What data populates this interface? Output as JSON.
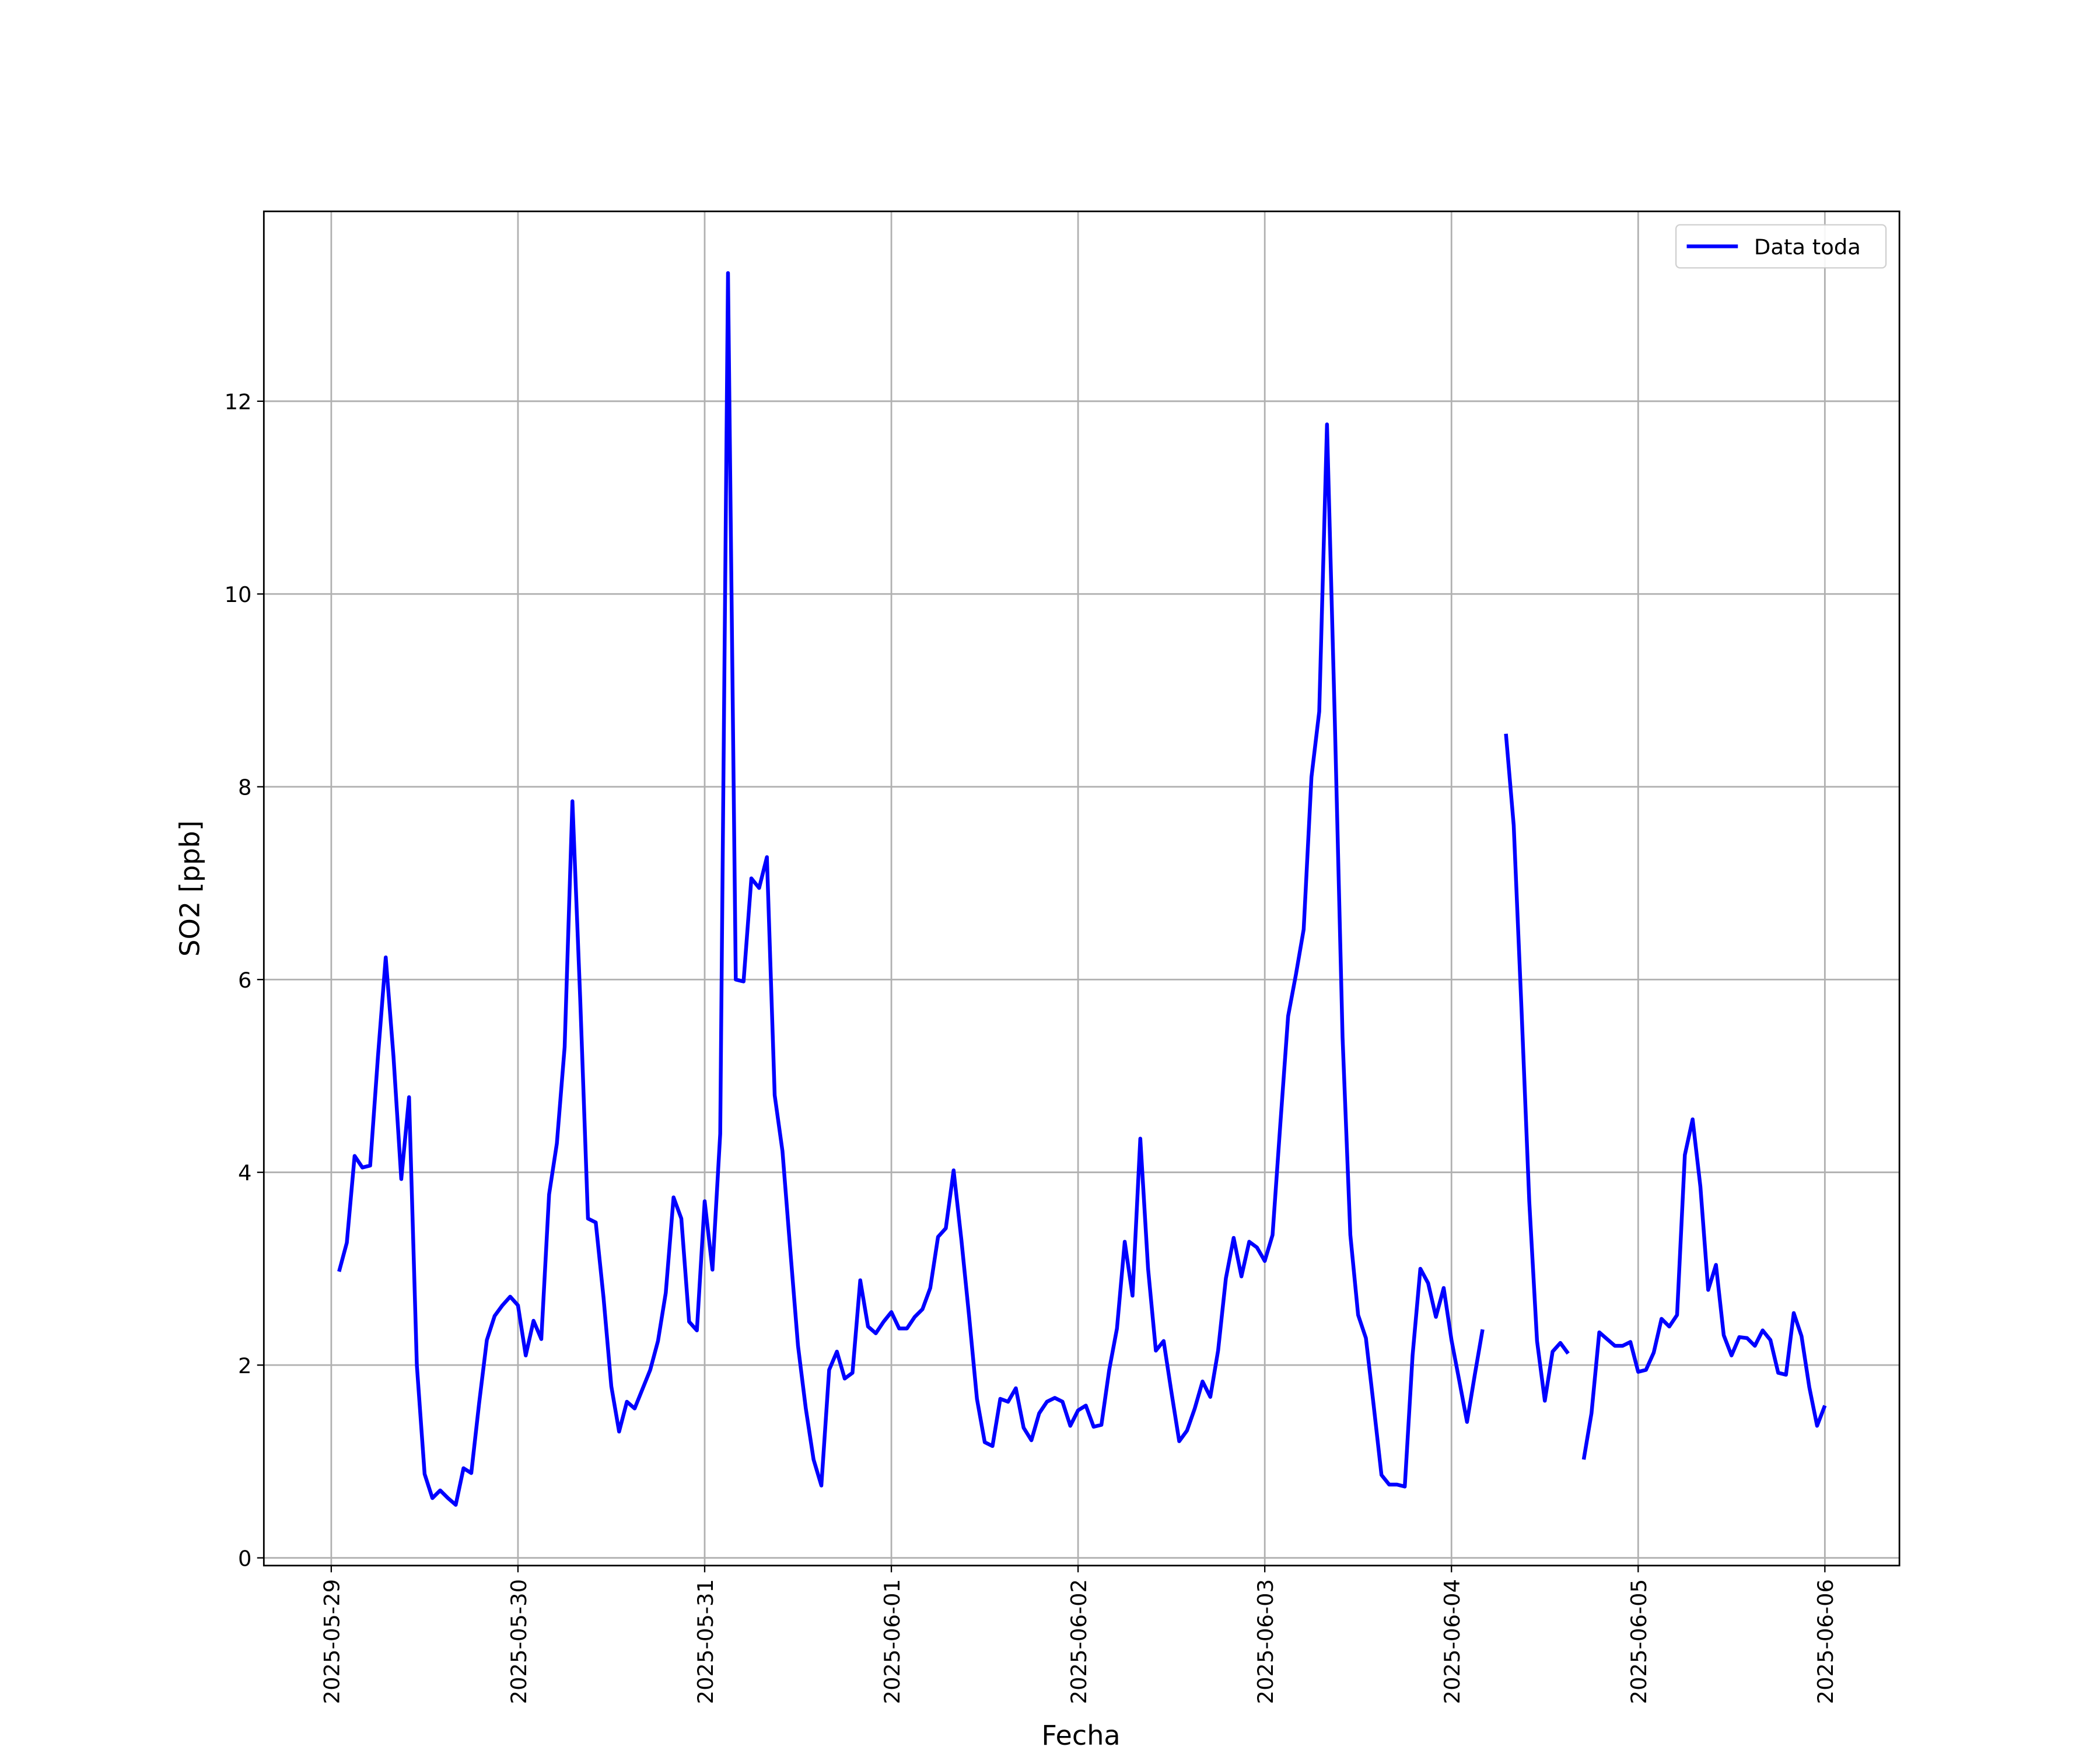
{
  "chart_data": {
    "type": "line",
    "xlabel": "Fecha",
    "ylabel": "SO2 [ppb]",
    "x": [
      "2025-05-29T01:00",
      "2025-05-29T02:00",
      "2025-05-29T03:00",
      "2025-05-29T04:00",
      "2025-05-29T05:00",
      "2025-05-29T06:00",
      "2025-05-29T07:00",
      "2025-05-29T08:00",
      "2025-05-29T09:00",
      "2025-05-29T10:00",
      "2025-05-29T11:00",
      "2025-05-29T12:00",
      "2025-05-29T13:00",
      "2025-05-29T14:00",
      "2025-05-29T15:00",
      "2025-05-29T16:00",
      "2025-05-29T17:00",
      "2025-05-29T18:00",
      "2025-05-29T19:00",
      "2025-05-29T20:00",
      "2025-05-29T21:00",
      "2025-05-29T22:00",
      "2025-05-29T23:00",
      "2025-05-30T00:00",
      "2025-05-30T01:00",
      "2025-05-30T02:00",
      "2025-05-30T03:00",
      "2025-05-30T04:00",
      "2025-05-30T05:00",
      "2025-05-30T06:00",
      "2025-05-30T07:00",
      "2025-05-30T08:00",
      "2025-05-30T09:00",
      "2025-05-30T10:00",
      "2025-05-30T11:00",
      "2025-05-30T12:00",
      "2025-05-30T13:00",
      "2025-05-30T14:00",
      "2025-05-30T15:00",
      "2025-05-30T16:00",
      "2025-05-30T17:00",
      "2025-05-30T18:00",
      "2025-05-30T19:00",
      "2025-05-30T20:00",
      "2025-05-30T21:00",
      "2025-05-30T22:00",
      "2025-05-30T23:00",
      "2025-05-31T00:00",
      "2025-05-31T01:00",
      "2025-05-31T02:00",
      "2025-05-31T03:00",
      "2025-05-31T04:00",
      "2025-05-31T05:00",
      "2025-05-31T06:00",
      "2025-05-31T07:00",
      "2025-05-31T08:00",
      "2025-05-31T09:00",
      "2025-05-31T10:00",
      "2025-05-31T11:00",
      "2025-05-31T12:00",
      "2025-05-31T13:00",
      "2025-05-31T14:00",
      "2025-05-31T15:00",
      "2025-05-31T16:00",
      "2025-05-31T17:00",
      "2025-05-31T18:00",
      "2025-05-31T19:00",
      "2025-05-31T20:00",
      "2025-05-31T21:00",
      "2025-05-31T22:00",
      "2025-05-31T23:00",
      "2025-06-01T00:00",
      "2025-06-01T01:00",
      "2025-06-01T02:00",
      "2025-06-01T03:00",
      "2025-06-01T04:00",
      "2025-06-01T05:00",
      "2025-06-01T06:00",
      "2025-06-01T07:00",
      "2025-06-01T08:00",
      "2025-06-01T09:00",
      "2025-06-01T10:00",
      "2025-06-01T11:00",
      "2025-06-01T12:00",
      "2025-06-01T13:00",
      "2025-06-01T14:00",
      "2025-06-01T15:00",
      "2025-06-01T16:00",
      "2025-06-01T17:00",
      "2025-06-01T18:00",
      "2025-06-01T19:00",
      "2025-06-01T20:00",
      "2025-06-01T21:00",
      "2025-06-01T22:00",
      "2025-06-01T23:00",
      "2025-06-02T00:00",
      "2025-06-02T01:00",
      "2025-06-02T02:00",
      "2025-06-02T03:00",
      "2025-06-02T04:00",
      "2025-06-02T05:00",
      "2025-06-02T06:00",
      "2025-06-02T07:00",
      "2025-06-02T08:00",
      "2025-06-02T09:00",
      "2025-06-02T10:00",
      "2025-06-02T11:00",
      "2025-06-02T12:00",
      "2025-06-02T13:00",
      "2025-06-02T14:00",
      "2025-06-02T15:00",
      "2025-06-02T16:00",
      "2025-06-02T17:00",
      "2025-06-02T18:00",
      "2025-06-02T19:00",
      "2025-06-02T20:00",
      "2025-06-02T21:00",
      "2025-06-02T22:00",
      "2025-06-02T23:00",
      "2025-06-03T00:00",
      "2025-06-03T01:00",
      "2025-06-03T02:00",
      "2025-06-03T03:00",
      "2025-06-03T04:00",
      "2025-06-03T05:00",
      "2025-06-03T06:00",
      "2025-06-03T07:00",
      "2025-06-03T08:00",
      "2025-06-03T09:00",
      "2025-06-03T10:00",
      "2025-06-03T11:00",
      "2025-06-03T12:00",
      "2025-06-03T13:00",
      "2025-06-03T14:00",
      "2025-06-03T15:00",
      "2025-06-03T16:00",
      "2025-06-03T17:00",
      "2025-06-03T18:00",
      "2025-06-03T19:00",
      "2025-06-03T20:00",
      "2025-06-03T21:00",
      "2025-06-03T22:00",
      "2025-06-03T23:00",
      "2025-06-04T00:00",
      "2025-06-04T01:00",
      "2025-06-04T02:00",
      "2025-06-04T03:00",
      "2025-06-04T04:00",
      "2025-06-04T05:00",
      "2025-06-04T06:00",
      "2025-06-04T07:00",
      "2025-06-04T08:00",
      "2025-06-04T09:00",
      "2025-06-04T10:00",
      "2025-06-04T11:00",
      "2025-06-04T12:00",
      "2025-06-04T13:00",
      "2025-06-04T14:00",
      "2025-06-04T15:00",
      "2025-06-04T16:00",
      "2025-06-04T17:00",
      "2025-06-04T18:00",
      "2025-06-04T19:00",
      "2025-06-04T20:00",
      "2025-06-04T21:00",
      "2025-06-04T22:00",
      "2025-06-04T23:00",
      "2025-06-05T00:00",
      "2025-06-05T01:00",
      "2025-06-05T02:00",
      "2025-06-05T03:00",
      "2025-06-05T04:00",
      "2025-06-05T05:00",
      "2025-06-05T06:00",
      "2025-06-05T07:00",
      "2025-06-05T08:00",
      "2025-06-05T09:00",
      "2025-06-05T10:00",
      "2025-06-05T11:00",
      "2025-06-05T12:00",
      "2025-06-05T13:00",
      "2025-06-05T14:00",
      "2025-06-05T15:00",
      "2025-06-05T16:00",
      "2025-06-05T17:00",
      "2025-06-05T18:00",
      "2025-06-05T19:00",
      "2025-06-05T20:00",
      "2025-06-05T21:00",
      "2025-06-05T22:00",
      "2025-06-05T23:00",
      "2025-06-06T00:00"
    ],
    "series": [
      {
        "name": "Data toda",
        "color": "#0000ff",
        "values": [
          2.97,
          3.27,
          4.17,
          4.05,
          4.07,
          5.2,
          6.23,
          5.2,
          3.93,
          4.78,
          2.0,
          0.87,
          0.62,
          0.7,
          0.62,
          0.55,
          0.93,
          0.88,
          1.6,
          2.26,
          2.51,
          2.62,
          2.71,
          2.62,
          2.1,
          2.46,
          2.27,
          3.77,
          4.3,
          5.3,
          7.85,
          5.8,
          3.52,
          3.48,
          2.7,
          1.78,
          1.31,
          1.62,
          1.55,
          1.75,
          1.95,
          2.25,
          2.75,
          3.74,
          3.52,
          2.45,
          2.36,
          3.7,
          2.99,
          4.4,
          13.33,
          6.0,
          5.98,
          7.05,
          6.95,
          7.27,
          4.8,
          4.22,
          3.2,
          2.2,
          1.55,
          1.02,
          0.75,
          1.95,
          2.14,
          1.86,
          1.92,
          2.88,
          2.4,
          2.33,
          2.45,
          2.55,
          2.38,
          2.38,
          2.5,
          2.58,
          2.8,
          3.33,
          3.42,
          4.02,
          3.3,
          2.5,
          1.65,
          1.2,
          1.16,
          1.65,
          1.62,
          1.76,
          1.35,
          1.22,
          1.5,
          1.62,
          1.66,
          1.62,
          1.37,
          1.53,
          1.58,
          1.36,
          1.38,
          1.95,
          2.38,
          3.28,
          2.72,
          4.35,
          3.0,
          2.15,
          2.25,
          1.72,
          1.21,
          1.32,
          1.55,
          1.83,
          1.67,
          2.15,
          2.9,
          3.32,
          2.92,
          3.28,
          3.22,
          3.08,
          3.35,
          4.5,
          5.62,
          6.05,
          6.52,
          8.1,
          8.78,
          11.76,
          8.7,
          5.4,
          3.35,
          2.52,
          2.28,
          1.58,
          0.86,
          0.76,
          0.76,
          0.74,
          2.1,
          3.0,
          2.85,
          2.5,
          2.8,
          2.26,
          1.84,
          1.41,
          1.9,
          2.37,
          null,
          null,
          8.55,
          7.6,
          5.7,
          3.7,
          2.25,
          1.63,
          2.14,
          2.23,
          2.12,
          null,
          1.02,
          1.5,
          2.34,
          2.27,
          2.2,
          2.2,
          2.24,
          1.93,
          1.95,
          2.13,
          2.48,
          2.4,
          2.52,
          4.18,
          4.55,
          3.85,
          2.78,
          3.04,
          2.31,
          2.1,
          2.29,
          2.28,
          2.2,
          2.36,
          2.26,
          1.92,
          1.9,
          2.54,
          2.3,
          1.77,
          1.37,
          1.58
        ]
      }
    ],
    "xlim": [
      "2025-05-28T15:20",
      "2025-06-06T09:35"
    ],
    "xticks": [
      "2025-05-29",
      "2025-05-30",
      "2025-05-31",
      "2025-06-01",
      "2025-06-02",
      "2025-06-03",
      "2025-06-04",
      "2025-06-05",
      "2025-06-06"
    ],
    "ylim": [
      -0.08,
      13.97
    ],
    "yticks": [
      0,
      2,
      4,
      6,
      8,
      10,
      12
    ],
    "grid": true,
    "legend": "upper right"
  }
}
